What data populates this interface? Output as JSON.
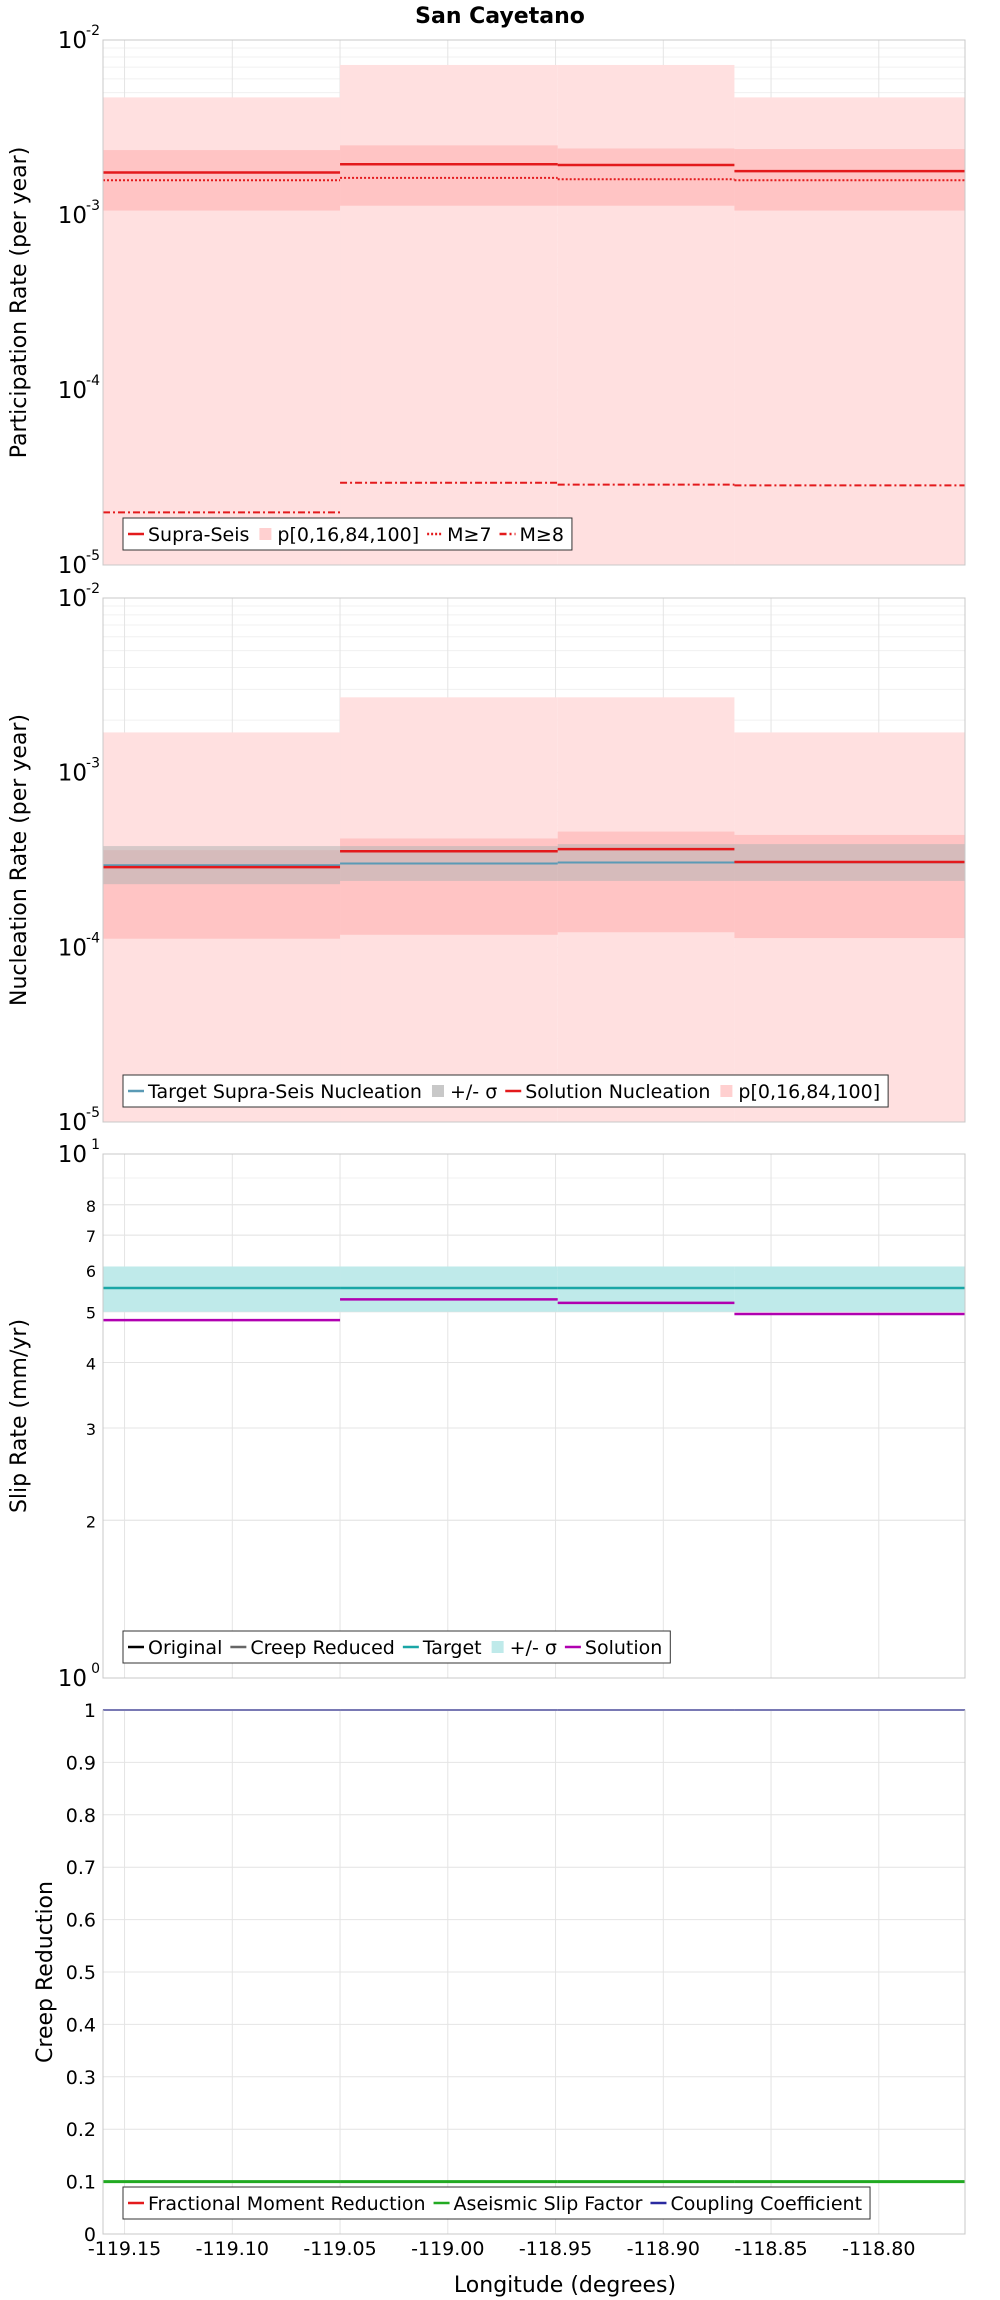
{
  "title": "San Cayetano",
  "xlabel": "Longitude (degrees)",
  "chart_data": [
    {
      "type": "line",
      "ylabel": "Participation Rate (per year)",
      "yscale": "log",
      "ylim": [
        1e-05,
        0.01
      ],
      "xlim": [
        -119.16,
        -118.76
      ],
      "yticks": [
        {
          "base": "10",
          "exp": "-5",
          "v": 1e-05
        },
        {
          "base": "10",
          "exp": "-4",
          "v": 0.0001
        },
        {
          "base": "10",
          "exp": "-3",
          "v": 0.001
        },
        {
          "base": "10",
          "exp": "-2",
          "v": 0.01
        }
      ],
      "segment_edges": [
        -119.16,
        -119.05,
        -118.949,
        -118.867,
        -118.76
      ],
      "bands": [
        {
          "name": "p[0,16,84,100]",
          "color": "#ffe0e0",
          "opacity": 1,
          "lower": [
            1e-05,
            1e-05,
            1e-05,
            1e-05
          ],
          "upper": [
            0.0047,
            0.0072,
            0.0072,
            0.0047
          ]
        },
        {
          "name": "p16-84",
          "color": "#ffc4c4",
          "opacity": 1,
          "lower": [
            0.00106,
            0.00113,
            0.00113,
            0.00106
          ],
          "upper": [
            0.00235,
            0.0025,
            0.0024,
            0.00238
          ]
        }
      ],
      "series": [
        {
          "name": "Supra-Seis",
          "color": "#e31a1c",
          "dash": "",
          "width": 2.5,
          "values": [
            0.00175,
            0.00195,
            0.00193,
            0.00178
          ]
        },
        {
          "name": "M≥7",
          "color": "#e31a1c",
          "dash": "2,2",
          "width": 2,
          "values": [
            0.00158,
            0.00163,
            0.0016,
            0.00158
          ]
        },
        {
          "name": "M≥8",
          "color": "#e31a1c",
          "dash": "7,3,2,3",
          "width": 2,
          "values": [
            2e-05,
            2.95e-05,
            2.88e-05,
            2.85e-05
          ]
        }
      ],
      "legend": [
        {
          "label": "Supra-Seis",
          "kind": "line",
          "color": "#e31a1c",
          "dash": ""
        },
        {
          "label": "p[0,16,84,100]",
          "kind": "band",
          "color": "#ffd0d0",
          "dash": ""
        },
        {
          "label": "M≥7",
          "kind": "line",
          "color": "#e31a1c",
          "dash": "2,2"
        },
        {
          "label": "M≥8",
          "kind": "line",
          "color": "#e31a1c",
          "dash": "7,3,2,3"
        }
      ]
    },
    {
      "type": "line",
      "ylabel": "Nucleation Rate (per year)",
      "yscale": "log",
      "ylim": [
        1e-05,
        0.01
      ],
      "xlim": [
        -119.16,
        -118.76
      ],
      "yticks": [
        {
          "base": "10",
          "exp": "-5",
          "v": 1e-05
        },
        {
          "base": "10",
          "exp": "-4",
          "v": 0.0001
        },
        {
          "base": "10",
          "exp": "-3",
          "v": 0.001
        },
        {
          "base": "10",
          "exp": "-2",
          "v": 0.01
        }
      ],
      "segment_edges": [
        -119.16,
        -119.05,
        -118.949,
        -118.867,
        -118.76
      ],
      "bands": [
        {
          "name": "p[0,16,84,100]",
          "color": "#ffe0e0",
          "opacity": 1,
          "lower": [
            1e-05,
            1e-05,
            1e-05,
            1e-05
          ],
          "upper": [
            0.0017,
            0.0027,
            0.0027,
            0.0017
          ]
        },
        {
          "name": "p16-84",
          "color": "#ffc4c4",
          "opacity": 1,
          "lower": [
            0.000112,
            0.000118,
            0.000122,
            0.000113
          ],
          "upper": [
            0.00036,
            0.00042,
            0.00046,
            0.00044
          ]
        },
        {
          "name": "+/- σ",
          "color": "#b4b4b4",
          "opacity": 0.55,
          "lower": [
            0.00023,
            0.00024,
            0.00024,
            0.00024
          ],
          "upper": [
            0.00038,
            0.00038,
            0.00039,
            0.00039
          ]
        }
      ],
      "series": [
        {
          "name": "Target Supra-Seis Nucleation",
          "color": "#5a9ab5",
          "dash": "",
          "width": 2,
          "values": [
            0.000295,
            0.000302,
            0.000306,
            0.000307
          ]
        },
        {
          "name": "Solution Nucleation",
          "color": "#e31a1c",
          "dash": "",
          "width": 2.5,
          "values": [
            0.000288,
            0.000355,
            0.000365,
            0.000308
          ]
        }
      ],
      "legend": [
        {
          "label": "Target Supra-Seis Nucleation",
          "kind": "line",
          "color": "#5a9ab5",
          "dash": ""
        },
        {
          "label": "+/- σ",
          "kind": "band",
          "color": "#c8c8c8",
          "dash": ""
        },
        {
          "label": "Solution Nucleation",
          "kind": "line",
          "color": "#e31a1c",
          "dash": ""
        },
        {
          "label": "p[0,16,84,100]",
          "kind": "band",
          "color": "#ffd0d0",
          "dash": ""
        }
      ]
    },
    {
      "type": "line",
      "ylabel": "Slip Rate (mm/yr)",
      "yscale": "log",
      "ylim": [
        1,
        10
      ],
      "xlim": [
        -119.16,
        -118.76
      ],
      "yticks": [
        {
          "base": "10",
          "exp": "0",
          "v": 1
        },
        {
          "base": "2",
          "exp": "",
          "v": 2
        },
        {
          "base": "3",
          "exp": "",
          "v": 3
        },
        {
          "base": "4",
          "exp": "",
          "v": 4
        },
        {
          "base": "5",
          "exp": "",
          "v": 5
        },
        {
          "base": "6",
          "exp": "",
          "v": 6
        },
        {
          "base": "7",
          "exp": "",
          "v": 7
        },
        {
          "base": "8",
          "exp": "",
          "v": 8
        },
        {
          "base": "10",
          "exp": "1",
          "v": 10
        }
      ],
      "segment_edges": [
        -119.16,
        -119.05,
        -118.949,
        -118.867,
        -118.76
      ],
      "bands": [
        {
          "name": "+/- σ",
          "color": "#bfeaea",
          "opacity": 1,
          "lower": [
            5.0,
            5.0,
            5.0,
            5.0
          ],
          "upper": [
            6.1,
            6.1,
            6.1,
            6.1
          ]
        }
      ],
      "series": [
        {
          "name": "Target",
          "color": "#1aa6a6",
          "dash": "",
          "width": 2.5,
          "values": [
            5.55,
            5.55,
            5.55,
            5.55
          ]
        },
        {
          "name": "Solution",
          "color": "#b000b0",
          "dash": "",
          "width": 2.5,
          "values": [
            4.82,
            5.28,
            5.2,
            4.95
          ]
        }
      ],
      "legend": [
        {
          "label": "Original",
          "kind": "line",
          "color": "#000000",
          "dash": ""
        },
        {
          "label": "Creep Reduced",
          "kind": "line",
          "color": "#666666",
          "dash": ""
        },
        {
          "label": "Target",
          "kind": "line",
          "color": "#1aa6a6",
          "dash": ""
        },
        {
          "label": "+/- σ",
          "kind": "band",
          "color": "#bfeaea",
          "dash": ""
        },
        {
          "label": "Solution",
          "kind": "line",
          "color": "#b000b0",
          "dash": ""
        }
      ]
    },
    {
      "type": "line",
      "ylabel": "Creep Reduction",
      "yscale": "linear",
      "ylim": [
        0,
        1
      ],
      "xlim": [
        -119.16,
        -118.76
      ],
      "yticks": [
        {
          "base": "0",
          "exp": "",
          "v": 0
        },
        {
          "base": "0.1",
          "exp": "",
          "v": 0.1
        },
        {
          "base": "0.2",
          "exp": "",
          "v": 0.2
        },
        {
          "base": "0.3",
          "exp": "",
          "v": 0.3
        },
        {
          "base": "0.4",
          "exp": "",
          "v": 0.4
        },
        {
          "base": "0.5",
          "exp": "",
          "v": 0.5
        },
        {
          "base": "0.6",
          "exp": "",
          "v": 0.6
        },
        {
          "base": "0.7",
          "exp": "",
          "v": 0.7
        },
        {
          "base": "0.8",
          "exp": "",
          "v": 0.8
        },
        {
          "base": "0.9",
          "exp": "",
          "v": 0.9
        },
        {
          "base": "1",
          "exp": "",
          "v": 1
        }
      ],
      "segment_edges": [
        -119.16,
        -119.05,
        -118.949,
        -118.867,
        -118.76
      ],
      "bands": [],
      "series": [
        {
          "name": "Aseismic Slip Factor",
          "color": "#22aa22",
          "dash": "",
          "width": 3,
          "values": [
            0.1,
            0.1,
            0.1,
            0.1
          ]
        },
        {
          "name": "Coupling Coefficient",
          "color": "#2a2aa0",
          "dash": "",
          "width": 2,
          "values": [
            1.0,
            1.0,
            1.0,
            1.0
          ]
        }
      ],
      "legend": [
        {
          "label": "Fractional Moment Reduction",
          "kind": "line",
          "color": "#e31a1c",
          "dash": ""
        },
        {
          "label": "Aseismic Slip Factor",
          "kind": "line",
          "color": "#22aa22",
          "dash": ""
        },
        {
          "label": "Coupling Coefficient",
          "kind": "line",
          "color": "#2a2aa0",
          "dash": ""
        }
      ]
    }
  ],
  "xticks": [
    -119.15,
    -119.1,
    -119.05,
    -119.0,
    -118.95,
    -118.9,
    -118.85,
    -118.8
  ],
  "xtick_labels": [
    "-119.15",
    "-119.10",
    "-119.05",
    "-119.00",
    "-118.95",
    "-118.90",
    "-118.85",
    "-118.80"
  ]
}
